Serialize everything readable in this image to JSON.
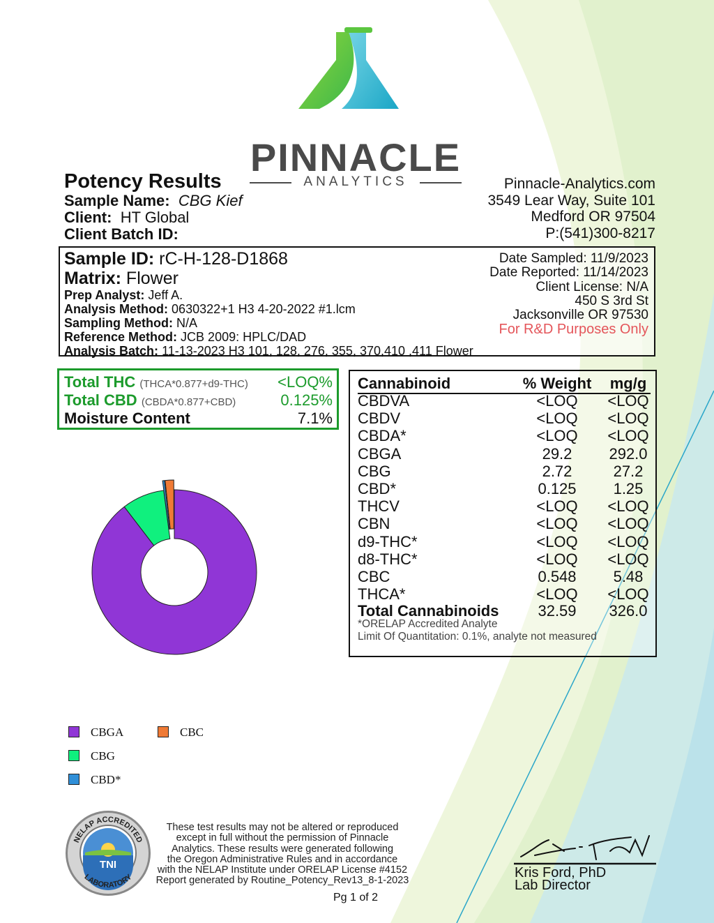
{
  "logo": {
    "name": "PINNACLE",
    "tagline": "ANALYTICS"
  },
  "header": {
    "title": "Potency Results",
    "sample_name_label": "Sample Name:",
    "sample_name": "CBG Kief",
    "client_label": "Client:",
    "client": "HT Global",
    "batch_label": "Client Batch ID:",
    "batch": ""
  },
  "lab": {
    "website": "Pinnacle-Analytics.com",
    "address1": "3549 Lear Way, Suite 101",
    "address2": "Medford OR 97504",
    "phone": "P:(541)300-8217"
  },
  "sample": {
    "id_label": "Sample ID:",
    "id": "rC-H-128-D1868",
    "matrix_label": "Matrix:",
    "matrix": "Flower",
    "prep_label": "Prep Analyst:",
    "prep": "Jeff A.",
    "analysis_label": "Analysis Method:",
    "analysis": "0630322+1 H3 4-20-2022 #1.lcm",
    "sampling_label": "Sampling Method:",
    "sampling": "N/A",
    "reference_label": "Reference Method:",
    "reference": "JCB 2009: HPLC/DAD",
    "batch_label": "Analysis Batch:",
    "batch": "11-13-2023 H3 101, 128, 276, 355, 370,410 ,411 Flower",
    "date_sampled": "Date Sampled:  11/9/2023",
    "date_reported": "Date Reported: 11/14/2023",
    "license": "Client License: N/A",
    "client_addr1": "450 S 3rd St",
    "client_addr2": "Jacksonville OR 97530",
    "purpose": "For R&D Purposes Only"
  },
  "summary": {
    "thc_label": "Total THC",
    "thc_formula": "(THCA*0.877+d9-THC)",
    "thc_value": "<LOQ%",
    "cbd_label": "Total CBD",
    "cbd_formula": "(CBDA*0.877+CBD)",
    "cbd_value": "0.125%",
    "moisture_label": "Moisture Content",
    "moisture_value": "7.1%"
  },
  "table": {
    "headers": [
      "Cannabinoid",
      "% Weight",
      "mg/g"
    ],
    "rows": [
      [
        "CBDVA",
        "<LOQ",
        "<LOQ"
      ],
      [
        "CBDV",
        "<LOQ",
        "<LOQ"
      ],
      [
        "CBDA*",
        "<LOQ",
        "<LOQ"
      ],
      [
        "CBGA",
        "29.2",
        "292.0"
      ],
      [
        "CBG",
        "2.72",
        "27.2"
      ],
      [
        "CBD*",
        "0.125",
        "1.25"
      ],
      [
        "THCV",
        "<LOQ",
        "<LOQ"
      ],
      [
        "CBN",
        "<LOQ",
        "<LOQ"
      ],
      [
        "d9-THC*",
        "<LOQ",
        "<LOQ"
      ],
      [
        "d8-THC*",
        "<LOQ",
        "<LOQ"
      ],
      [
        "CBC",
        "0.548",
        "5.48"
      ],
      [
        "THCA*",
        "<LOQ",
        "<LOQ"
      ]
    ],
    "total": [
      "Total Cannabinoids",
      "32.59",
      "326.0"
    ],
    "note1": "*ORELAP Accredited Analyte",
    "note2": "Limit Of Quantitation: 0.1%, analyte not measured"
  },
  "chart_data": {
    "type": "pie",
    "style": "donut",
    "categories": [
      "CBGA",
      "CBG",
      "CBD*",
      "CBC"
    ],
    "values": [
      29.2,
      2.72,
      0.125,
      0.548
    ],
    "colors": [
      "#9036d6",
      "#10f07e",
      "#2f8fd8",
      "#ef7a35"
    ],
    "legend_placement": "bottom-left",
    "exploded": [
      "CBD*",
      "CBC"
    ]
  },
  "footer": {
    "disclaimer": [
      "These test results may not be altered or reproduced",
      "except in full without the permission of Pinnacle",
      "Analytics. These results were generated following",
      "the Oregon Administrative Rules and in accordance",
      "with the NELAP Institute under ORELAP License #4152",
      "Report generated by Routine_Potency_Rev13_8-1-2023"
    ],
    "signer": "Kris Ford, PhD",
    "signer_title": "Lab Director",
    "page": "Pg 1 of 2",
    "seal_text": "NELAP ACCREDITED LABORATORY TNI"
  }
}
